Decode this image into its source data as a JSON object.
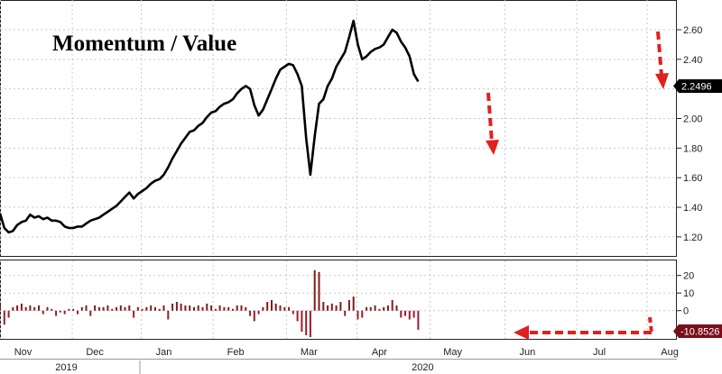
{
  "chart_data": [
    {
      "type": "line",
      "title": "Momentum / Value",
      "ylim": [
        1.12,
        2.74
      ],
      "yticks": [
        "1.20",
        "1.40",
        "1.60",
        "1.80",
        "2.00",
        "2.20",
        "2.40",
        "2.60"
      ],
      "yticks_values": [
        1.2,
        1.4,
        1.6,
        1.8,
        2.0,
        2.2,
        2.4,
        2.6
      ],
      "last_value_label": "2.2496",
      "last_value": 2.2496,
      "series": [
        {
          "color": "#000000",
          "x": [
            0,
            3,
            6,
            9,
            12,
            15,
            18,
            21,
            24,
            27,
            30,
            33,
            36,
            39,
            42,
            45,
            48,
            51,
            54,
            57,
            60,
            63,
            66,
            69,
            72,
            75,
            78,
            81,
            84,
            87,
            90,
            93,
            96,
            99,
            102,
            105,
            108,
            111,
            114,
            117,
            120,
            123,
            126,
            129,
            132,
            135,
            138,
            141,
            144,
            147,
            150,
            153,
            156,
            159,
            162,
            165,
            168,
            171,
            174,
            177,
            180,
            183,
            186,
            189,
            192,
            195,
            198,
            201,
            204,
            207,
            210,
            213,
            216,
            219,
            222,
            225,
            228,
            231,
            234,
            237,
            240,
            243,
            246,
            249,
            252,
            255,
            258,
            261,
            264,
            267,
            270,
            273,
            276,
            279,
            282,
            285,
            288,
            291
          ],
          "values": [
            1.36,
            1.26,
            1.23,
            1.24,
            1.28,
            1.3,
            1.31,
            1.35,
            1.33,
            1.34,
            1.32,
            1.33,
            1.31,
            1.31,
            1.3,
            1.27,
            1.26,
            1.26,
            1.27,
            1.27,
            1.29,
            1.31,
            1.32,
            1.33,
            1.35,
            1.37,
            1.39,
            1.41,
            1.44,
            1.47,
            1.5,
            1.46,
            1.49,
            1.51,
            1.53,
            1.56,
            1.58,
            1.59,
            1.62,
            1.67,
            1.73,
            1.78,
            1.83,
            1.87,
            1.91,
            1.92,
            1.95,
            1.97,
            2.01,
            2.04,
            2.05,
            2.08,
            2.1,
            2.11,
            2.13,
            2.17,
            2.2,
            2.22,
            2.2,
            2.09,
            2.02,
            2.06,
            2.13,
            2.2,
            2.27,
            2.33,
            2.35,
            2.37,
            2.36,
            2.3,
            2.22,
            1.87,
            1.62,
            1.88,
            2.1,
            2.13,
            2.22,
            2.27,
            2.35,
            2.4,
            2.45,
            2.55,
            2.66,
            2.5,
            2.4,
            2.42,
            2.45,
            2.47,
            2.48,
            2.5,
            2.55,
            2.6,
            2.58,
            2.52,
            2.48,
            2.42,
            2.3,
            2.2496
          ]
        }
      ]
    },
    {
      "type": "bar",
      "ylim": [
        -15,
        27
      ],
      "yticks": [
        "20",
        "10",
        "0"
      ],
      "yticks_values": [
        20,
        10,
        0
      ],
      "last_value_label": "-10.8526",
      "last_value": -10.8526,
      "x": [
        0,
        3,
        6,
        9,
        12,
        15,
        18,
        21,
        24,
        27,
        30,
        33,
        36,
        39,
        42,
        45,
        48,
        51,
        54,
        57,
        60,
        63,
        66,
        69,
        72,
        75,
        78,
        81,
        84,
        87,
        90,
        93,
        96,
        99,
        102,
        105,
        108,
        111,
        114,
        117,
        120,
        123,
        126,
        129,
        132,
        135,
        138,
        141,
        144,
        147,
        150,
        153,
        156,
        159,
        162,
        165,
        168,
        171,
        174,
        177,
        180,
        183,
        186,
        189,
        192,
        195,
        198,
        201,
        204,
        207,
        210,
        213,
        216,
        219,
        222,
        225,
        228,
        231,
        234,
        237,
        240,
        243,
        246,
        249,
        252,
        255,
        258,
        261,
        264,
        267,
        270,
        273,
        276,
        279,
        282,
        285,
        288,
        291
      ],
      "values": [
        3,
        -8,
        -4,
        2,
        3,
        4,
        2,
        3,
        2,
        3,
        -2,
        2,
        1,
        -3,
        -1,
        -2,
        1,
        1,
        -2,
        2,
        3,
        -3,
        3,
        2,
        2,
        3,
        1,
        2,
        3,
        2,
        3,
        -4,
        2,
        1,
        2,
        3,
        2,
        1,
        3,
        -5,
        4,
        5,
        4,
        3,
        3,
        2,
        3,
        2,
        4,
        3,
        1,
        3,
        2,
        2,
        1,
        3,
        3,
        2,
        -3,
        -6,
        -2,
        2,
        5,
        6,
        4,
        3,
        2,
        2,
        -2,
        -6,
        -12,
        -14,
        -15,
        23,
        22,
        5,
        3,
        4,
        3,
        5,
        -3,
        6,
        8,
        -5,
        -4,
        2,
        2,
        3,
        1,
        2,
        3,
        6,
        3,
        -4,
        -3,
        -5,
        -4,
        -10.8526
      ],
      "colors": {
        "positive": "#7f1d1d",
        "negative": "#9b1c2c"
      }
    }
  ],
  "x_axis": {
    "months": [
      "Nov",
      "Dec",
      "Jan",
      "Feb",
      "Mar",
      "Apr",
      "May",
      "Jun",
      "Jul",
      "Aug"
    ],
    "month_x": [
      16,
      66,
      114,
      164,
      215,
      264,
      315,
      367,
      417,
      466
    ],
    "years": [
      "2019",
      "2020"
    ],
    "year_x": [
      16,
      264
    ],
    "range": [
      0,
      471
    ]
  },
  "colors": {
    "arrow": "#e02020",
    "badge": "#000000",
    "line": "#000000"
  }
}
